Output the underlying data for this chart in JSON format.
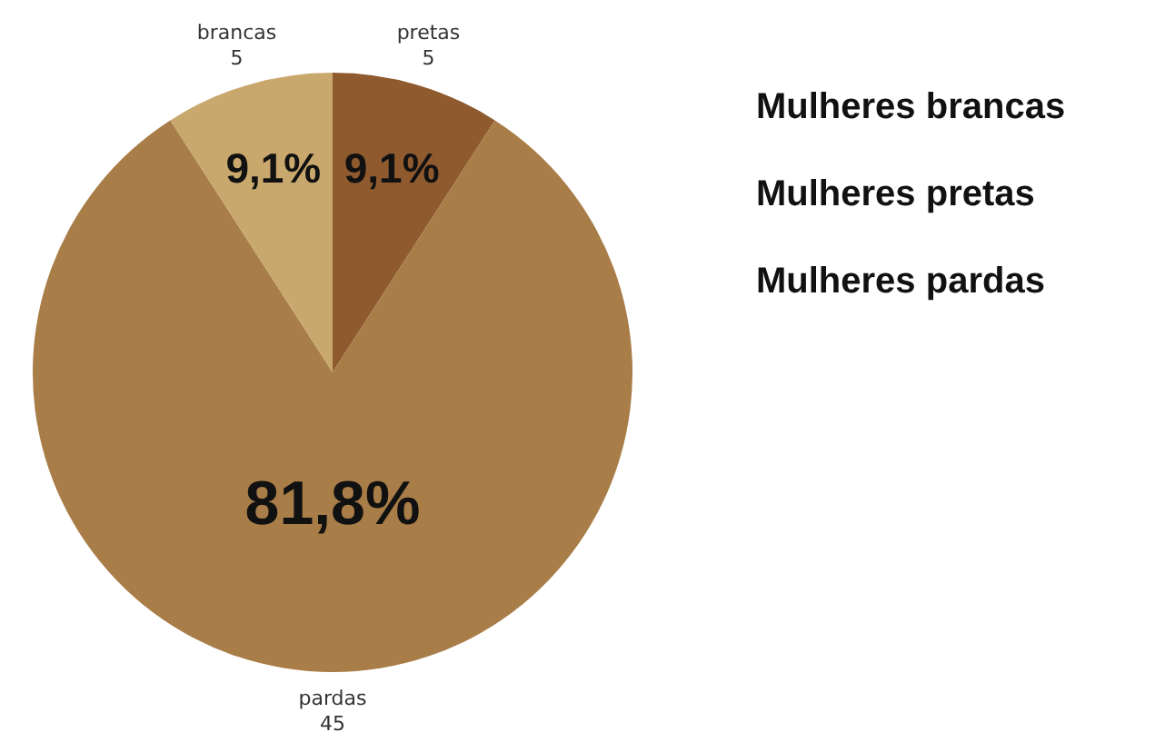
{
  "chart_data": {
    "type": "pie",
    "categories": [
      "pretas",
      "pardas",
      "brancas"
    ],
    "values": [
      9.1,
      81.8,
      9.1
    ],
    "colors": [
      "#8e5a2e",
      "#a87d47",
      "#c9a86e"
    ],
    "value_labels": [
      "9,1%",
      "81,8%",
      "9,1%"
    ],
    "annotations": [
      "Mulheres brancas",
      "Mulheres pretas",
      "Mulheres pardas",
      {
        "text": "5",
        "x": "pretas"
      },
      {
        "text": "45",
        "x": "pardas"
      },
      {
        "text": "5",
        "x": "brancas"
      }
    ],
    "legend": false
  }
}
